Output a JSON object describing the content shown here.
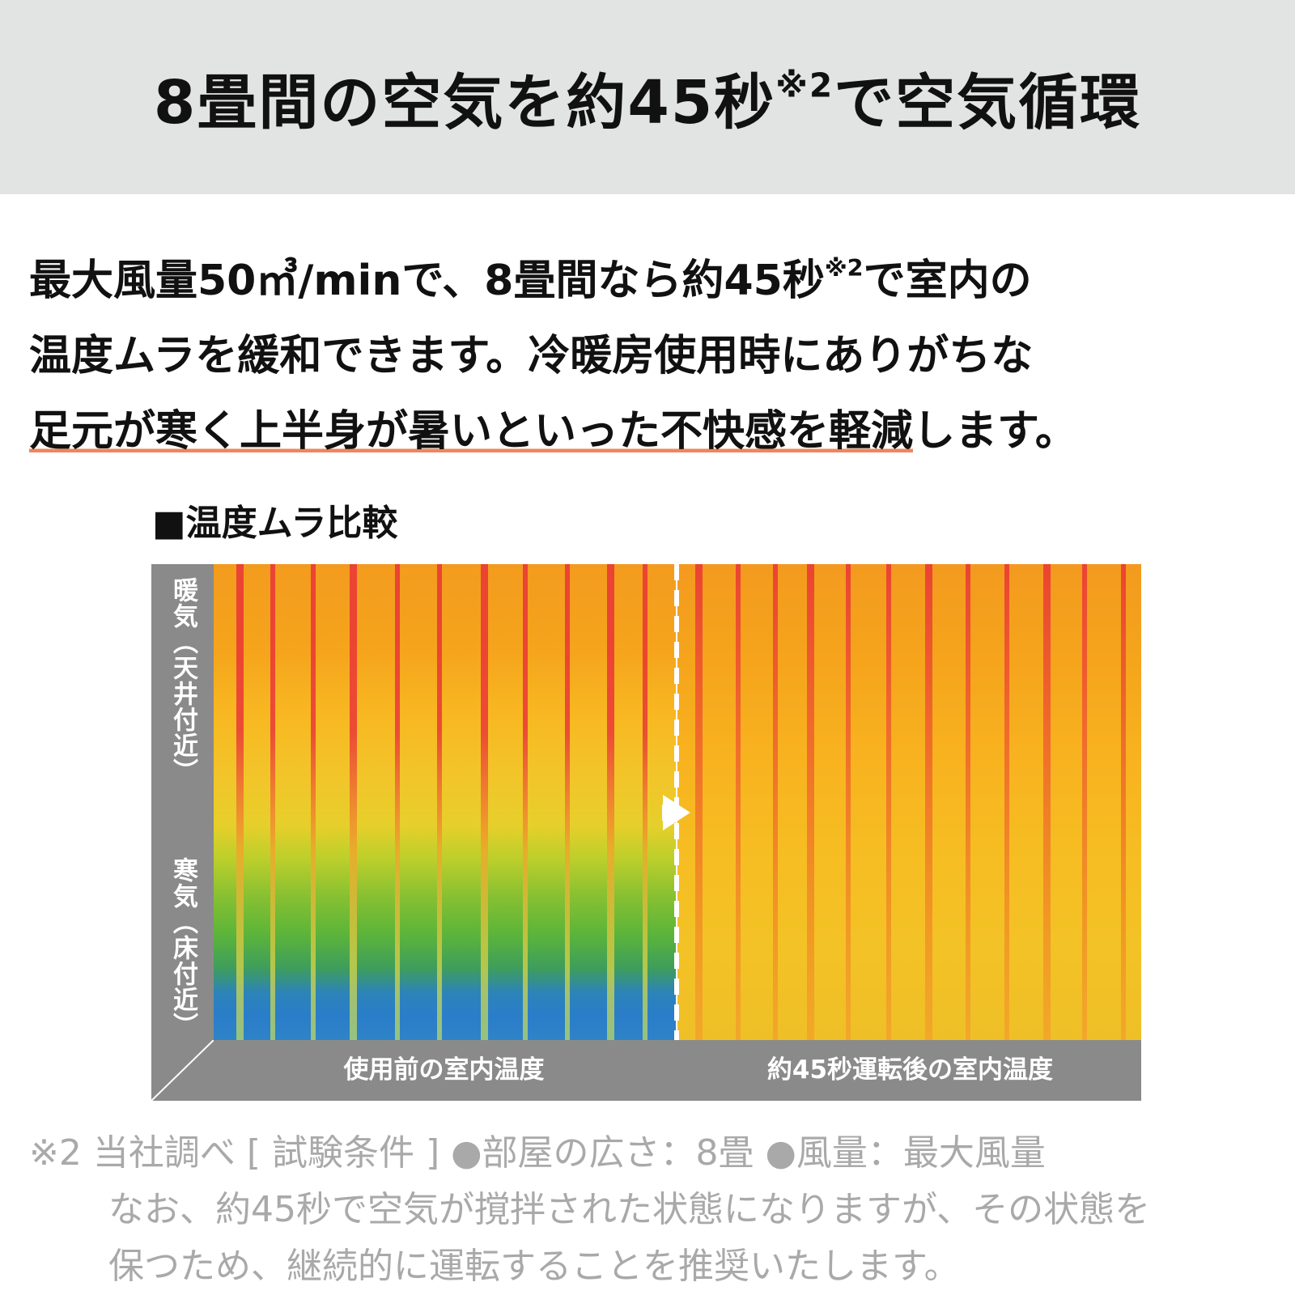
{
  "header": {
    "title_main": "8畳間の空気を約45秒",
    "title_note": "※2",
    "title_end": "で空気循環"
  },
  "intro": {
    "line1_a": "最大風量50㎥/minで、8畳間なら約45秒",
    "line1_note": "※2",
    "line1_b": "で室内の",
    "line2": "温度ムラを緩和できます。冷暖房使用時にありがちな",
    "line3_underlined": "足元が寒く上半身が暑いといった不快感を軽減",
    "line3_rest": "します。"
  },
  "comparison": {
    "section_title": "■温度ムラ比較",
    "y_label_top": "暖気（天井付近）",
    "y_label_bottom": "寒気（床付近）",
    "x_label_before": "使用前の室内温度",
    "x_label_after": "約45秒運転後の室内温度",
    "colors": {
      "hot": "#e8263a",
      "warm": "#f5a41c",
      "neutral": "#f3c226",
      "cool": "#5bb43a",
      "cold": "#2a7dc9",
      "axis": "#8a8a8a",
      "underline": "#f0855a"
    }
  },
  "notes": {
    "line1": "※2 当社調べ [ 試験条件 ] ●部屋の広さ：8畳 ●風量：最大風量",
    "line2": "なお、約45秒で空気が撹拌された状態になりますが、その状態を",
    "line3": "保つため、継続的に運転することを推奨いたします。"
  }
}
